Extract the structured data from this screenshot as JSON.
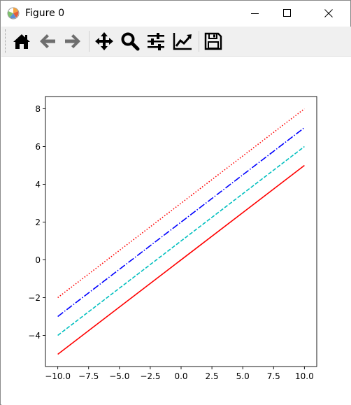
{
  "window": {
    "title": "Figure 0",
    "controls": {
      "minimize_icon": "minimize-icon",
      "maximize_icon": "maximize-icon",
      "close_icon": "close-icon"
    }
  },
  "toolbar": {
    "buttons": [
      {
        "name": "home",
        "icon": "home-icon"
      },
      {
        "name": "back",
        "icon": "arrow-left-icon"
      },
      {
        "name": "forward",
        "icon": "arrow-right-icon"
      },
      {
        "name": "pan",
        "icon": "move-icon"
      },
      {
        "name": "zoom",
        "icon": "magnifier-icon"
      },
      {
        "name": "configure-subplots",
        "icon": "sliders-icon"
      },
      {
        "name": "edit-axis",
        "icon": "trend-chart-icon"
      },
      {
        "name": "save",
        "icon": "floppy-disk-icon"
      }
    ]
  },
  "chart_data": {
    "type": "line",
    "title": "",
    "xlabel": "",
    "ylabel": "",
    "xlim": [
      -11,
      11
    ],
    "ylim": [
      -5.65,
      8.65
    ],
    "xticks": [
      -10.0,
      -7.5,
      -5.0,
      -2.5,
      0.0,
      2.5,
      5.0,
      7.5,
      10.0
    ],
    "xtick_labels": [
      "−10.0",
      "−7.5",
      "−5.0",
      "−2.5",
      "0.0",
      "2.5",
      "5.0",
      "7.5",
      "10.0"
    ],
    "yticks": [
      -4,
      -2,
      0,
      2,
      4,
      6,
      8
    ],
    "ytick_labels": [
      "−4",
      "−2",
      "0",
      "2",
      "4",
      "6",
      "8"
    ],
    "grid": false,
    "series": [
      {
        "color": "#ff0000",
        "linestyle": "solid",
        "x": [
          -10,
          10
        ],
        "y": [
          -5,
          5
        ]
      },
      {
        "color": "#00bfbf",
        "linestyle": "dashed",
        "x": [
          -10,
          10
        ],
        "y": [
          -4,
          6
        ]
      },
      {
        "color": "#0000ff",
        "linestyle": "dashdot",
        "x": [
          -10,
          10
        ],
        "y": [
          -3,
          7
        ]
      },
      {
        "color": "#ff0000",
        "linestyle": "dotted",
        "x": [
          -10,
          10
        ],
        "y": [
          -2,
          8
        ]
      }
    ]
  }
}
